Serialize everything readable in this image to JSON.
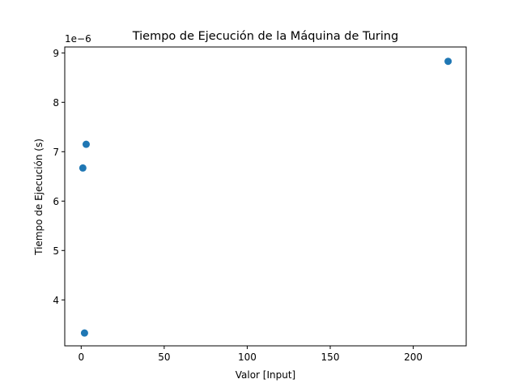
{
  "chart_data": {
    "type": "scatter",
    "title": "Tiempo de Ejecución de la Máquina de Turing",
    "xlabel": "Valor [Input]",
    "ylabel": "Tiempo de Ejecución (s)",
    "y_offset_label": "1e−6",
    "xlim": [
      -9.9,
      231.9
    ],
    "ylim": [
      3.07,
      9.12
    ],
    "x_ticks": [
      0,
      50,
      100,
      150,
      200
    ],
    "y_ticks": [
      4,
      5,
      6,
      7,
      8,
      9
    ],
    "x_tick_labels": [
      "0",
      "50",
      "100",
      "150",
      "200"
    ],
    "y_tick_labels": [
      "4",
      "5",
      "6",
      "7",
      "8",
      "9"
    ],
    "series": [
      {
        "x": [
          1,
          2,
          3,
          221
        ],
        "y": [
          6.67,
          3.33,
          7.15,
          8.83
        ]
      }
    ],
    "marker_color": "#1f77b4",
    "grid": false,
    "legend": false
  }
}
